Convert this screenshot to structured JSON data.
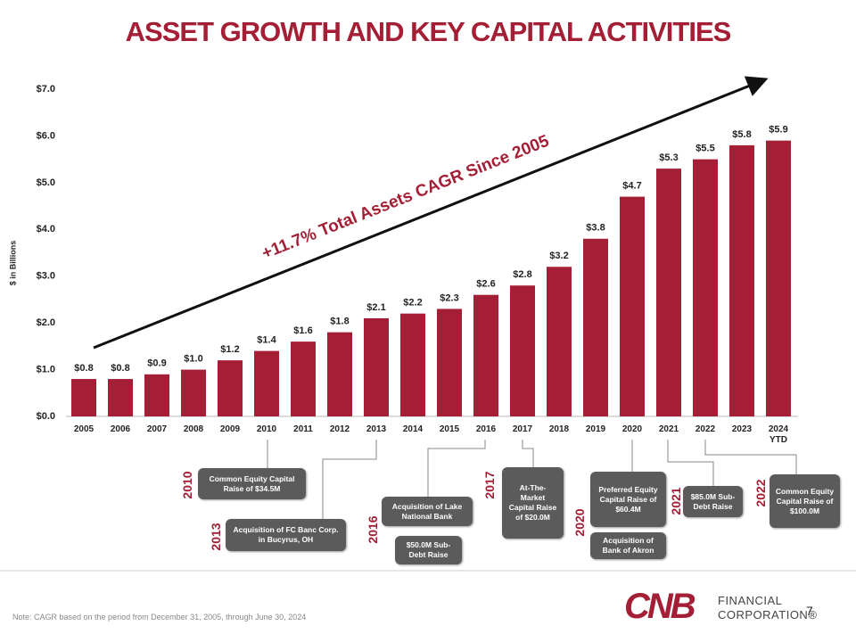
{
  "chart_data": {
    "type": "bar",
    "title": "ASSET GROWTH AND KEY CAPITAL ACTIVITIES",
    "y_label": "$ in Billions",
    "annotation": "+11.7% Total Assets CAGR Since 2005",
    "categories": [
      "2005",
      "2006",
      "2007",
      "2008",
      "2009",
      "2010",
      "2011",
      "2012",
      "2013",
      "2014",
      "2015",
      "2016",
      "2017",
      "2018",
      "2019",
      "2020",
      "2021",
      "2022",
      "2023",
      "2024 YTD"
    ],
    "values": [
      0.8,
      0.8,
      0.9,
      1.0,
      1.2,
      1.4,
      1.6,
      1.8,
      2.1,
      2.2,
      2.3,
      2.6,
      2.8,
      3.2,
      3.8,
      4.7,
      5.3,
      5.5,
      5.8,
      5.9
    ],
    "value_labels": [
      "$0.8",
      "$0.8",
      "$0.9",
      "$1.0",
      "$1.2",
      "$1.4",
      "$1.6",
      "$1.8",
      "$2.1",
      "$2.2",
      "$2.3",
      "$2.6",
      "$2.8",
      "$3.2",
      "$3.8",
      "$4.7",
      "$5.3",
      "$5.5",
      "$5.8",
      "$5.9"
    ],
    "color": "#a41f35",
    "ylim": [
      0,
      7
    ],
    "yticks": [
      {
        "value": 0,
        "label": "$0.0"
      },
      {
        "value": 1,
        "label": "$1.0"
      },
      {
        "value": 2,
        "label": "$2.0"
      },
      {
        "value": 3,
        "label": "$3.0"
      },
      {
        "value": 4,
        "label": "$4.0"
      },
      {
        "value": 5,
        "label": "$5.0"
      },
      {
        "value": 6,
        "label": "$6.0"
      },
      {
        "value": 7,
        "label": "$7.0"
      }
    ],
    "grid": false
  },
  "events": [
    {
      "year": "2010",
      "items": [
        "Common Equity Capital Raise of $34.5M"
      ]
    },
    {
      "year": "2013",
      "items": [
        "Acquisition of FC Banc Corp. in Bucyrus, OH"
      ]
    },
    {
      "year": "2016",
      "items": [
        "Acquisition of Lake National Bank",
        "$50.0M Sub-Debt Raise"
      ]
    },
    {
      "year": "2017",
      "items": [
        "At-The-Market Capital Raise of $20.0M"
      ]
    },
    {
      "year": "2020",
      "items": [
        "Preferred Equity Capital Raise of $60.4M",
        "Acquisition of Bank of Akron"
      ]
    },
    {
      "year": "2021",
      "items": [
        "$85.0M Sub-Debt Raise"
      ]
    },
    {
      "year": "2022",
      "items": [
        "Common Equity Capital Raise of $100.0M"
      ]
    }
  ],
  "footer": {
    "note": "Note: CAGR based on the period from December 31, 2005, through June 30, 2024",
    "page": "7",
    "logo": {
      "mark": "CNB",
      "line1": "FINANCIAL",
      "line2": "CORPORATION®"
    }
  }
}
